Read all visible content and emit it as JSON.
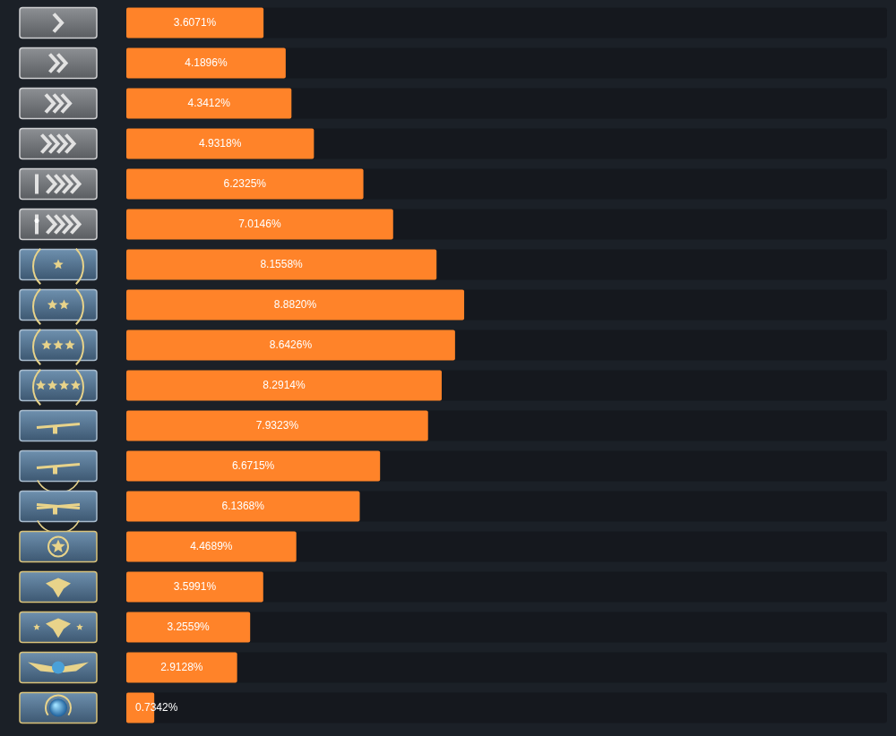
{
  "chart_data": {
    "type": "bar",
    "orientation": "horizontal",
    "categories": [
      null,
      null,
      null,
      null,
      null,
      null,
      null,
      null,
      null,
      null,
      null,
      null,
      null,
      null,
      null,
      null,
      null,
      null
    ],
    "values": [
      3.6071,
      4.1896,
      4.3412,
      4.9318,
      6.2325,
      7.0146,
      8.1558,
      8.882,
      8.6426,
      8.2914,
      7.9323,
      6.6715,
      6.1368,
      4.4689,
      3.5991,
      3.2559,
      2.9128,
      0.7342
    ],
    "value_labels": [
      "3.6071%",
      "4.1896%",
      "4.3412%",
      "4.9318%",
      "6.2325%",
      "7.0146%",
      "8.1558%",
      "8.8820%",
      "8.6426%",
      "8.2914%",
      "7.9323%",
      "6.6715%",
      "6.1368%",
      "4.4689%",
      "3.5991%",
      "3.2559%",
      "2.9128%",
      "0.7342%"
    ],
    "color": "#ff8329",
    "xlim": [
      0,
      20
    ],
    "grid": false,
    "tick_labels": false,
    "data_labels": true
  }
}
